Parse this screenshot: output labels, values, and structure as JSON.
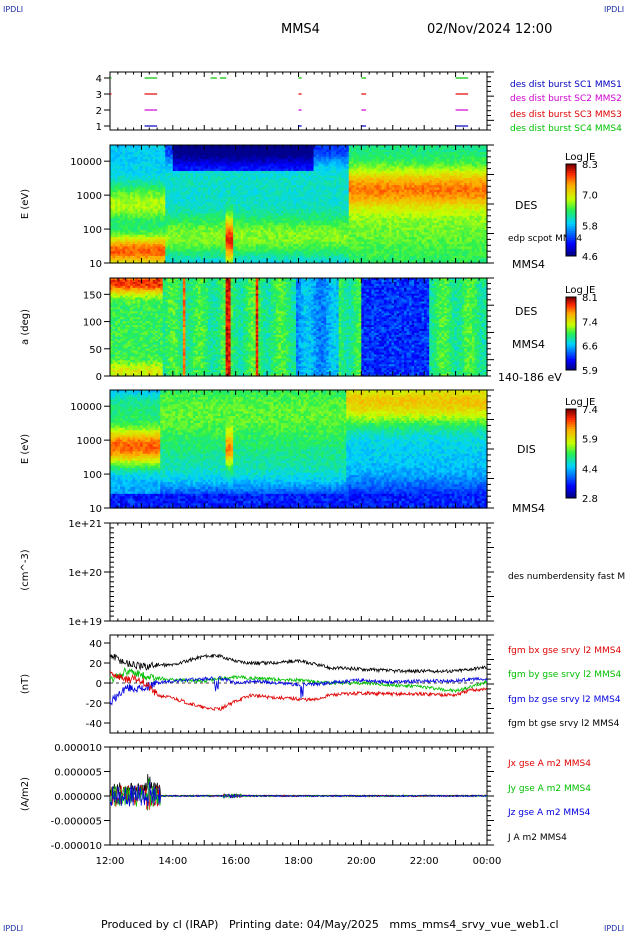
{
  "header": {
    "corner_label": "IPDLI",
    "spacecraft": "MMS4",
    "datetime": "02/Nov/2024 12:00"
  },
  "footer": {
    "text": "Produced by cl (IRAP)   Printing date: 04/May/2025   mms_mms4_srvy_vue_web1.cl"
  },
  "time_axis": {
    "ticks": [
      "12:00",
      "14:00",
      "16:00",
      "18:00",
      "20:00",
      "22:00",
      "00:00"
    ]
  },
  "colors": {
    "red": "#e00000",
    "green": "#00c800",
    "blue": "#0000e0",
    "magenta": "#d000d0",
    "black": "#000000"
  },
  "chart_data": [
    {
      "type": "scatter",
      "panel": "burst-availability",
      "yticks": [
        "4",
        "3",
        "2",
        "1"
      ],
      "legend_position": "right",
      "series": [
        {
          "name": "des dist burst SC1 MMS1",
          "color": "#0000c0",
          "row": 1,
          "intervals": [
            [
              13.1,
              13.5
            ],
            [
              18.0,
              18.1
            ],
            [
              20.0,
              20.15
            ],
            [
              23.0,
              23.4
            ]
          ]
        },
        {
          "name": "des dist burst SC2 MMS2",
          "color": "#d000d0",
          "row": 2,
          "intervals": [
            [
              13.1,
              13.5
            ],
            [
              18.0,
              18.1
            ],
            [
              20.0,
              20.15
            ],
            [
              23.0,
              23.4
            ]
          ]
        },
        {
          "name": "des dist burst SC3 MMS3",
          "color": "#e00000",
          "row": 3,
          "intervals": [
            [
              12.0,
              12.05
            ],
            [
              13.1,
              13.5
            ],
            [
              18.0,
              18.1
            ],
            [
              20.0,
              20.15
            ],
            [
              23.0,
              23.4
            ]
          ]
        },
        {
          "name": "des dist burst SC4 MMS4",
          "color": "#00c000",
          "row": 4,
          "intervals": [
            [
              12.0,
              12.05
            ],
            [
              13.1,
              13.5
            ],
            [
              15.2,
              15.4
            ],
            [
              15.5,
              15.7
            ],
            [
              18.0,
              18.1
            ],
            [
              20.0,
              20.15
            ],
            [
              23.0,
              23.4
            ]
          ]
        }
      ]
    },
    {
      "type": "heatmap",
      "panel": "des-energy-spectrogram",
      "ylabel": "E (eV)",
      "yscale": "log",
      "ylim": [
        10,
        30000
      ],
      "yticks": [
        "10000",
        "1000",
        "100",
        "10"
      ],
      "label": "DES",
      "extra_label": "edp scpot MMS4",
      "sc_label": "MMS4",
      "colorbar": {
        "title": "Log JE",
        "ticks": [
          "8.3",
          "7.0",
          "5.8",
          "4.6"
        ]
      }
    },
    {
      "type": "heatmap",
      "panel": "des-pitch-angle",
      "ylabel": "a (deg)",
      "ylim": [
        0,
        180
      ],
      "yticks": [
        "150",
        "100",
        "50",
        "0"
      ],
      "label": "DES",
      "sc_label": "MMS4",
      "energy_range": "140-186 eV",
      "colorbar": {
        "title": "Log JE",
        "ticks": [
          "8.1",
          "7.4",
          "6.6",
          "5.9"
        ]
      }
    },
    {
      "type": "heatmap",
      "panel": "dis-energy-spectrogram",
      "ylabel": "E (eV)",
      "yscale": "log",
      "ylim": [
        10,
        30000
      ],
      "yticks": [
        "10000",
        "1000",
        "100",
        "10"
      ],
      "label": "DIS",
      "sc_label": "MMS4",
      "colorbar": {
        "title": "Log JE",
        "ticks": [
          "7.4",
          "5.9",
          "4.4",
          "2.8"
        ]
      }
    },
    {
      "type": "line",
      "panel": "number-density",
      "ylabel": "(cm^-3)",
      "yscale": "log",
      "ylim": [
        1e+19,
        1e+21
      ],
      "yticks": [
        "1e+21",
        "1e+20",
        "1e+19"
      ],
      "series": [
        {
          "name": "des numberdensity fast M",
          "values": []
        }
      ]
    },
    {
      "type": "line",
      "panel": "magnetic-field",
      "ylabel": "(nT)",
      "ylim": [
        -50,
        48
      ],
      "yticks": [
        "40",
        "20",
        "0",
        "-20",
        "-40"
      ],
      "x": [
        12.0,
        12.5,
        13.0,
        13.5,
        14.0,
        15.0,
        15.5,
        16.0,
        16.5,
        17.0,
        18.0,
        18.5,
        19.0,
        20.0,
        21.0,
        22.0,
        23.0,
        23.5,
        24.0
      ],
      "series": [
        {
          "name": "fgm bx gse srvy l2 MMS4",
          "color": "#e00000",
          "values": [
            10,
            4,
            3,
            -12,
            -15,
            -25,
            -26,
            -18,
            -12,
            -14,
            -16,
            -17,
            -12,
            -10,
            -11,
            -11,
            -12,
            -7,
            -6
          ]
        },
        {
          "name": "fgm by gse srvy l2 MMS4",
          "color": "#00c000",
          "values": [
            2,
            12,
            8,
            5,
            3,
            2,
            4,
            6,
            5,
            4,
            3,
            1,
            0,
            0,
            -2,
            -4,
            -8,
            -4,
            2
          ]
        },
        {
          "name": "fgm bz gse srvy l2 MMS4",
          "color": "#0000e0",
          "values": [
            -20,
            -5,
            -6,
            0,
            2,
            4,
            5,
            0,
            2,
            1,
            -2,
            -1,
            0,
            3,
            1,
            2,
            2,
            4,
            3
          ]
        },
        {
          "name": "fgm bt gse srvy l2 MMS4",
          "color": "#000000",
          "values": [
            28,
            20,
            16,
            18,
            18,
            27,
            27,
            22,
            20,
            20,
            22,
            19,
            15,
            14,
            12,
            12,
            12,
            14,
            16
          ]
        }
      ]
    },
    {
      "type": "line",
      "panel": "current-density",
      "ylabel": "(A/m2)",
      "ylim": [
        -1e-05,
        1e-05
      ],
      "yticks": [
        "0.000010",
        "0.000005",
        "0.000000",
        "-0.000005",
        "-0.000010"
      ],
      "series": [
        {
          "name": "Jx gse A m2 MMS4",
          "color": "#e00000"
        },
        {
          "name": "Jy gse A m2 MMS4",
          "color": "#00c000"
        },
        {
          "name": "Jz gse A m2 MMS4",
          "color": "#0000e0"
        },
        {
          "name": "J A m2 MMS4",
          "color": "#000000"
        }
      ]
    }
  ]
}
